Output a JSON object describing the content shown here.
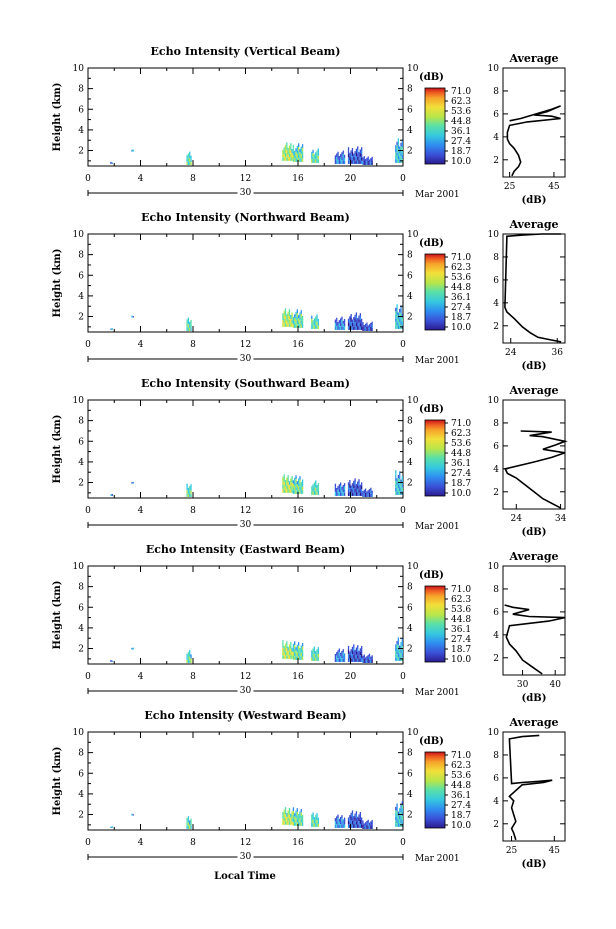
{
  "chart_data": {
    "type": "heatmap",
    "x_axis_label": "Local Time",
    "y_axis_label": "Height (km)",
    "date_label": "Mar 2001",
    "date_day": "30",
    "x_ticks": [
      "0",
      "4",
      "8",
      "12",
      "16",
      "20",
      "0"
    ],
    "x_range_hours": [
      0,
      24
    ],
    "y_ticks": [
      "2",
      "4",
      "6",
      "8",
      "10"
    ],
    "y_range_km": [
      0.5,
      10
    ],
    "colorbar": {
      "unit": "(dB)",
      "labels": [
        "71.0",
        "62.3",
        "53.6",
        "44.8",
        "36.1",
        "27.4",
        "18.7",
        "10.0"
      ],
      "colors": [
        "#2b1b8f",
        "#3a4fd6",
        "#2f8ef0",
        "#35c7e0",
        "#59e0a8",
        "#b7e64a",
        "#f2df3a",
        "#f7a32a",
        "#ee5a22",
        "#c8121a"
      ]
    },
    "cell_clusters": [
      {
        "t0": 1.7,
        "t1": 1.9,
        "z0": 0.7,
        "z1": 0.9,
        "lvl": 3
      },
      {
        "t0": 3.3,
        "t1": 3.5,
        "z0": 1.9,
        "z1": 2.1,
        "lvl": 3
      },
      {
        "t0": 7.5,
        "t1": 7.9,
        "z0": 0.6,
        "z1": 1.9,
        "lvl": 4
      },
      {
        "t0": 14.8,
        "t1": 15.6,
        "z0": 1.0,
        "z1": 2.8,
        "lvl": 5
      },
      {
        "t0": 15.6,
        "t1": 16.4,
        "z0": 0.9,
        "z1": 2.7,
        "lvl": 4
      },
      {
        "t0": 17.0,
        "t1": 17.6,
        "z0": 0.8,
        "z1": 2.2,
        "lvl": 4
      },
      {
        "t0": 18.8,
        "t1": 19.6,
        "z0": 0.7,
        "z1": 2.0,
        "lvl": 2
      },
      {
        "t0": 19.8,
        "t1": 20.9,
        "z0": 0.7,
        "z1": 2.4,
        "lvl": 1
      },
      {
        "t0": 20.9,
        "t1": 21.7,
        "z0": 0.6,
        "z1": 1.5,
        "lvl": 1
      },
      {
        "t0": 23.4,
        "t1": 24.0,
        "z0": 0.8,
        "z1": 3.3,
        "lvl": 3
      }
    ],
    "panels": [
      {
        "title": "Echo Intensity (Vertical Beam)",
        "profile_title": "Average",
        "profile_xlabel": "(dB)",
        "profile_xticks": [
          "25",
          "45"
        ],
        "profile_xrange": [
          22,
          50
        ],
        "profile_yticks": [
          "2",
          "4",
          "6",
          "8",
          "10"
        ],
        "profile": [
          [
            26,
            0.6
          ],
          [
            27,
            1.0
          ],
          [
            29,
            1.4
          ],
          [
            30,
            1.8
          ],
          [
            29,
            2.4
          ],
          [
            27,
            3.0
          ],
          [
            25,
            3.4
          ],
          [
            24,
            3.8
          ],
          [
            24,
            4.4
          ],
          [
            25,
            5.0
          ],
          [
            33,
            5.3
          ],
          [
            48,
            5.6
          ],
          [
            44,
            5.8
          ],
          [
            36,
            5.9
          ],
          [
            42,
            6.2
          ],
          [
            48,
            6.7
          ],
          [
            44,
            6.4
          ],
          [
            30,
            5.6
          ],
          [
            25,
            5.4
          ]
        ]
      },
      {
        "title": "Echo Intensity (Northward Beam)",
        "profile_title": "Average",
        "profile_xlabel": "(dB)",
        "profile_xticks": [
          "24",
          "36"
        ],
        "profile_xrange": [
          22,
          38
        ],
        "profile_yticks": [
          "2",
          "4",
          "6",
          "8",
          "10"
        ],
        "profile": [
          [
            37,
            0.6
          ],
          [
            34,
            0.8
          ],
          [
            31,
            1.0
          ],
          [
            29,
            1.4
          ],
          [
            27,
            1.9
          ],
          [
            25,
            2.6
          ],
          [
            23,
            3.2
          ],
          [
            22.5,
            3.6
          ],
          [
            23,
            9.8
          ],
          [
            27,
            9.9
          ],
          [
            32,
            10.0
          ],
          [
            37,
            10.0
          ]
        ]
      },
      {
        "title": "Echo Intensity (Southward Beam)",
        "profile_title": "Average",
        "profile_xlabel": "(dB)",
        "profile_xticks": [
          "24",
          "34"
        ],
        "profile_xrange": [
          21,
          35
        ],
        "profile_yticks": [
          "2",
          "4",
          "6",
          "8",
          "10"
        ],
        "profile": [
          [
            34,
            0.6
          ],
          [
            32,
            1.0
          ],
          [
            30,
            1.4
          ],
          [
            28,
            2.0
          ],
          [
            26,
            2.6
          ],
          [
            24,
            3.2
          ],
          [
            22,
            3.6
          ],
          [
            21.5,
            4.0
          ],
          [
            28,
            4.6
          ],
          [
            32,
            5.0
          ],
          [
            35,
            5.4
          ],
          [
            30,
            5.7
          ],
          [
            33,
            6.1
          ],
          [
            35,
            6.4
          ],
          [
            30,
            6.8
          ],
          [
            27,
            6.9
          ],
          [
            32,
            7.2
          ],
          [
            25,
            7.3
          ]
        ]
      },
      {
        "title": "Echo Intensity (Eastward Beam)",
        "profile_title": "Average",
        "profile_xlabel": "(dB)",
        "profile_xticks": [
          "30",
          "40"
        ],
        "profile_xrange": [
          24,
          43
        ],
        "profile_yticks": [
          "2",
          "4",
          "6",
          "8",
          "10"
        ],
        "profile": [
          [
            36,
            0.6
          ],
          [
            34,
            1.0
          ],
          [
            32,
            1.4
          ],
          [
            30,
            1.8
          ],
          [
            28,
            2.6
          ],
          [
            26,
            3.2
          ],
          [
            25,
            3.8
          ],
          [
            26,
            4.8
          ],
          [
            38,
            5.2
          ],
          [
            43,
            5.5
          ],
          [
            32,
            5.6
          ],
          [
            27,
            5.8
          ],
          [
            32,
            6.2
          ],
          [
            27,
            6.4
          ],
          [
            24.5,
            6.6
          ]
        ]
      },
      {
        "title": "Echo Intensity (Westward Beam)",
        "profile_title": "Average",
        "profile_xlabel": "(dB)",
        "profile_xticks": [
          "25",
          "45"
        ],
        "profile_xrange": [
          21,
          50
        ],
        "profile_yticks": [
          "2",
          "4",
          "6",
          "8",
          "10"
        ],
        "profile": [
          [
            27,
            0.6
          ],
          [
            26,
            1.2
          ],
          [
            25,
            1.6
          ],
          [
            27,
            2.2
          ],
          [
            26,
            2.8
          ],
          [
            25,
            3.4
          ],
          [
            26,
            4.0
          ],
          [
            24,
            4.4
          ],
          [
            30,
            5.4
          ],
          [
            40,
            5.6
          ],
          [
            44,
            5.8
          ],
          [
            38,
            5.7
          ],
          [
            30,
            5.6
          ],
          [
            25,
            5.5
          ],
          [
            24,
            9.4
          ],
          [
            30,
            9.6
          ],
          [
            38,
            9.7
          ]
        ]
      }
    ]
  }
}
